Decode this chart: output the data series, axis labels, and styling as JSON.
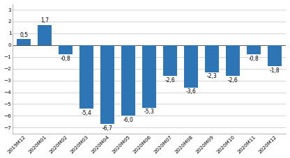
{
  "categories": [
    "2019M12",
    "2020M01",
    "2020M02",
    "2020M03",
    "2020M04",
    "2020M05",
    "2020M06",
    "2020M07",
    "2020M08",
    "2020M09",
    "2020M10",
    "2020M11",
    "2020M12"
  ],
  "values": [
    0.5,
    1.7,
    -0.8,
    -5.4,
    -6.7,
    -6.0,
    -5.3,
    -2.6,
    -3.6,
    -2.3,
    -2.6,
    -0.8,
    -1.8
  ],
  "bar_color": "#2E75B6",
  "ylim": [
    -7.5,
    3.5
  ],
  "yticks": [
    -7,
    -6,
    -5,
    -4,
    -3,
    -2,
    -1,
    0,
    1,
    2,
    3
  ],
  "background_color": "#FFFFFF",
  "grid_color": "#CCCCCC",
  "label_fontsize": 5.5,
  "tick_fontsize": 5.2,
  "bar_width": 0.65
}
